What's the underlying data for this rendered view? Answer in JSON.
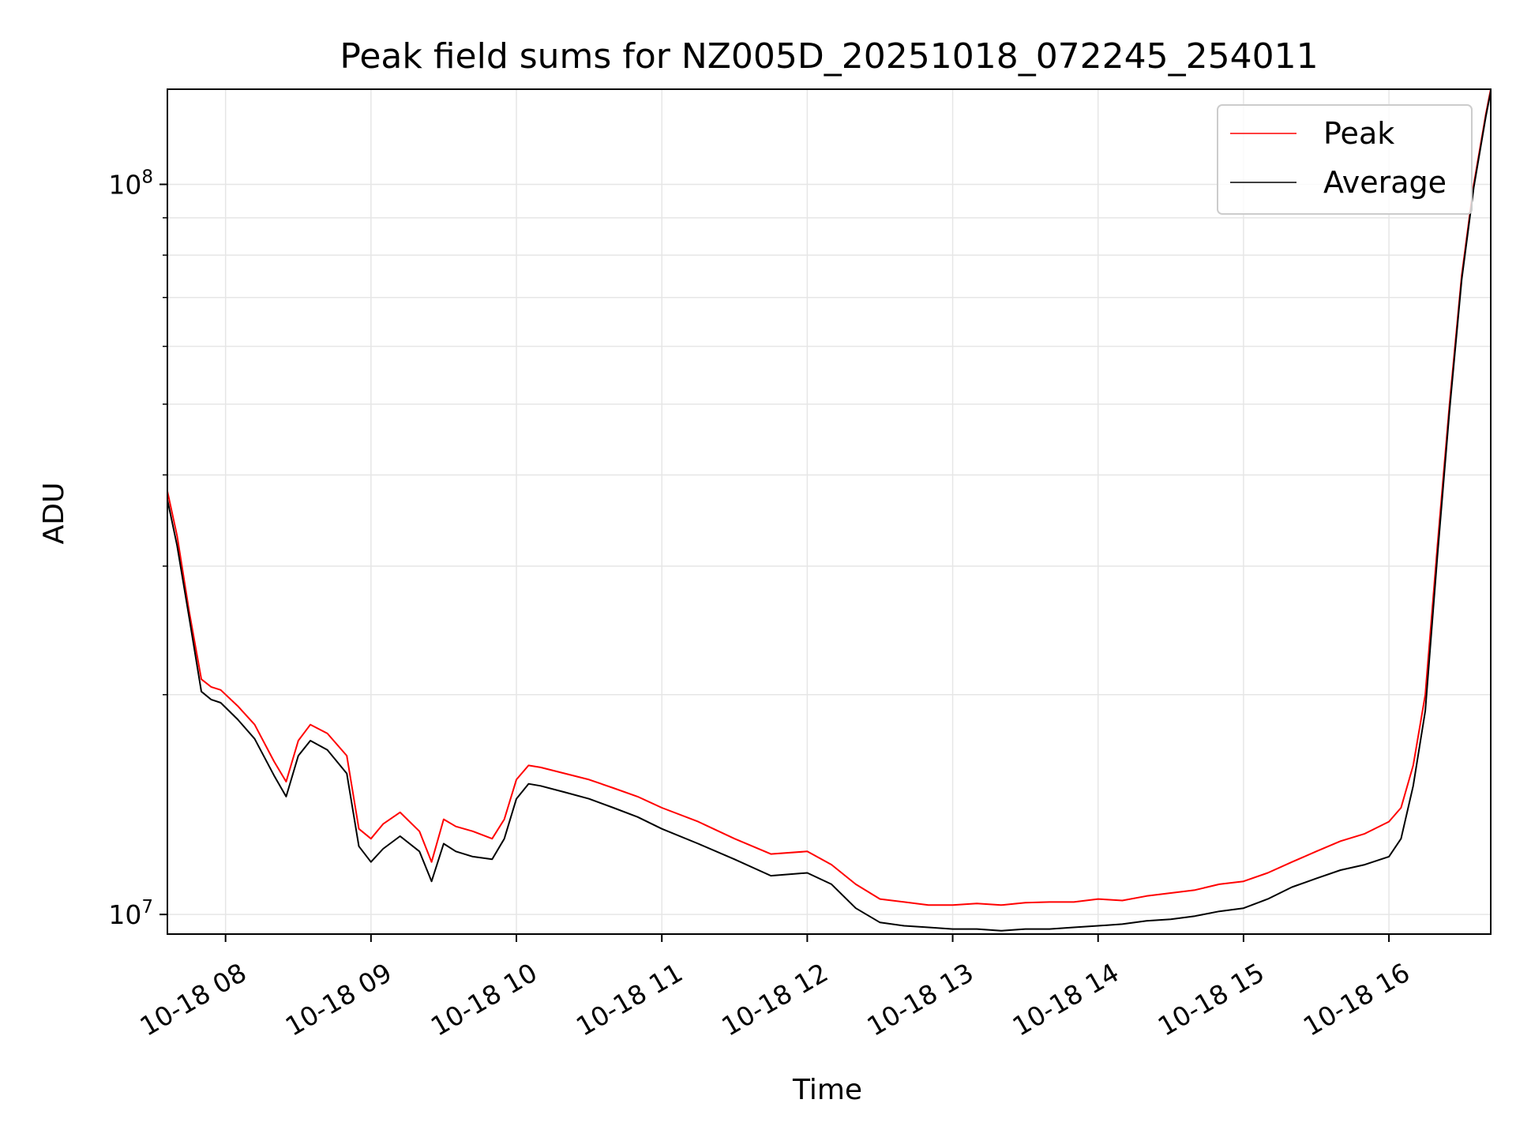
{
  "chart_data": {
    "type": "line",
    "title": "Peak field sums for NZ005D_20251018_072245_254011",
    "xlabel": "Time",
    "ylabel": "ADU",
    "yscale": "log",
    "x_unit": "hours",
    "xlim": [
      "10-18 07:36",
      "10-18 16:42"
    ],
    "ylim": [
      9400000,
      135000000
    ],
    "grid": true,
    "legend_position": "top-right",
    "x_ticks": [
      {
        "label": "10-18 08",
        "value": 8
      },
      {
        "label": "10-18 09",
        "value": 9
      },
      {
        "label": "10-18 10",
        "value": 10
      },
      {
        "label": "10-18 11",
        "value": 11
      },
      {
        "label": "10-18 12",
        "value": 12
      },
      {
        "label": "10-18 13",
        "value": 13
      },
      {
        "label": "10-18 14",
        "value": 14
      },
      {
        "label": "10-18 15",
        "value": 15
      },
      {
        "label": "10-18 16",
        "value": 16
      }
    ],
    "y_major_ticks": [
      {
        "base": "10",
        "exp": "7",
        "value": 10000000
      },
      {
        "base": "10",
        "exp": "8",
        "value": 100000000
      }
    ],
    "series": [
      {
        "name": "Peak",
        "color": "#ff0000",
        "x": [
          "07:36",
          "07:40",
          "07:45",
          "07:50",
          "07:54",
          "07:58",
          "08:05",
          "08:12",
          "08:20",
          "08:25",
          "08:30",
          "08:35",
          "08:42",
          "08:50",
          "08:55",
          "09:00",
          "09:05",
          "09:12",
          "09:20",
          "09:25",
          "09:30",
          "09:35",
          "09:42",
          "09:50",
          "09:55",
          "10:00",
          "10:05",
          "10:10",
          "10:20",
          "10:30",
          "10:40",
          "10:50",
          "11:00",
          "11:15",
          "11:30",
          "11:45",
          "12:00",
          "12:10",
          "12:20",
          "12:30",
          "12:40",
          "12:50",
          "13:00",
          "13:10",
          "13:20",
          "13:30",
          "13:40",
          "13:50",
          "14:00",
          "14:10",
          "14:20",
          "14:30",
          "14:40",
          "14:50",
          "15:00",
          "15:10",
          "15:20",
          "15:30",
          "15:40",
          "15:50",
          "16:00",
          "16:05",
          "16:10",
          "16:15",
          "16:20",
          "16:25",
          "16:30",
          "16:35",
          "16:40",
          "16:42"
        ],
        "y": [
          38000000,
          33000000,
          26000000,
          21000000,
          20500000,
          20300000,
          19300000,
          18200000,
          16200000,
          15200000,
          17300000,
          18200000,
          17700000,
          16500000,
          13100000,
          12700000,
          13300000,
          13800000,
          13000000,
          11800000,
          13500000,
          13200000,
          13000000,
          12700000,
          13500000,
          15300000,
          16000000,
          15900000,
          15600000,
          15300000,
          14900000,
          14500000,
          14000000,
          13400000,
          12700000,
          12100000,
          12200000,
          11700000,
          11000000,
          10500000,
          10400000,
          10300000,
          10300000,
          10350000,
          10300000,
          10380000,
          10400000,
          10400000,
          10500000,
          10450000,
          10600000,
          10700000,
          10800000,
          11000000,
          11100000,
          11400000,
          11800000,
          12200000,
          12600000,
          12900000,
          13400000,
          14000000,
          16000000,
          20000000,
          32000000,
          50000000,
          75000000,
          100000000,
          125000000,
          135000000
        ]
      },
      {
        "name": "Average",
        "color": "#000000",
        "x": [
          "07:36",
          "07:40",
          "07:45",
          "07:50",
          "07:54",
          "07:58",
          "08:05",
          "08:12",
          "08:20",
          "08:25",
          "08:30",
          "08:35",
          "08:42",
          "08:50",
          "08:55",
          "09:00",
          "09:05",
          "09:12",
          "09:20",
          "09:25",
          "09:30",
          "09:35",
          "09:42",
          "09:50",
          "09:55",
          "10:00",
          "10:05",
          "10:10",
          "10:20",
          "10:30",
          "10:40",
          "10:50",
          "11:00",
          "11:15",
          "11:30",
          "11:45",
          "12:00",
          "12:10",
          "12:20",
          "12:30",
          "12:40",
          "12:50",
          "13:00",
          "13:10",
          "13:20",
          "13:30",
          "13:40",
          "13:50",
          "14:00",
          "14:10",
          "14:20",
          "14:30",
          "14:40",
          "14:50",
          "15:00",
          "15:10",
          "15:20",
          "15:30",
          "15:40",
          "15:50",
          "16:00",
          "16:05",
          "16:10",
          "16:15",
          "16:20",
          "16:25",
          "16:30",
          "16:35",
          "16:40",
          "16:42"
        ],
        "y": [
          37000000,
          32000000,
          25500000,
          20200000,
          19700000,
          19500000,
          18500000,
          17400000,
          15500000,
          14500000,
          16500000,
          17300000,
          16800000,
          15600000,
          12400000,
          11800000,
          12300000,
          12800000,
          12200000,
          11100000,
          12500000,
          12200000,
          12000000,
          11900000,
          12700000,
          14400000,
          15100000,
          15000000,
          14700000,
          14400000,
          14000000,
          13600000,
          13100000,
          12500000,
          11900000,
          11300000,
          11400000,
          11000000,
          10200000,
          9750000,
          9650000,
          9600000,
          9550000,
          9550000,
          9500000,
          9550000,
          9550000,
          9600000,
          9650000,
          9700000,
          9800000,
          9850000,
          9950000,
          10100000,
          10200000,
          10500000,
          10900000,
          11200000,
          11500000,
          11700000,
          12000000,
          12700000,
          15000000,
          19000000,
          31000000,
          49000000,
          74000000,
          99000000,
          124000000,
          134000000
        ]
      }
    ]
  }
}
